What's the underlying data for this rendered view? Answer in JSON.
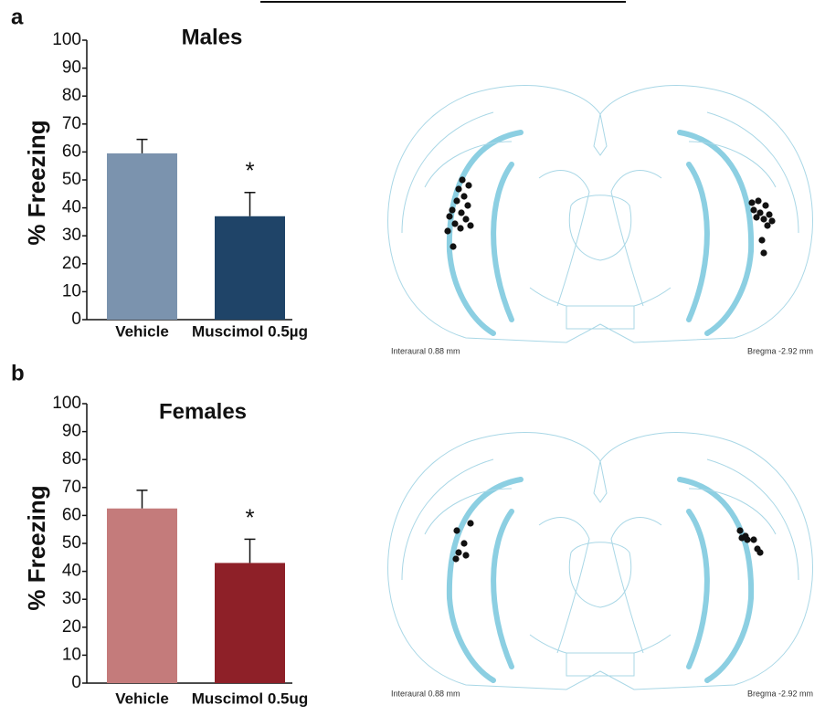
{
  "chart_data": [
    {
      "type": "bar",
      "panel_label": "a",
      "title": "Males",
      "ylabel": "% Freezing",
      "categories": [
        "Vehicle",
        "Muscimol 0.5µg"
      ],
      "values": [
        59.5,
        37
      ],
      "errors": [
        5,
        8.5
      ],
      "colors": [
        "#7b93ae",
        "#1f4468"
      ],
      "annotation": "*",
      "ylim": [
        0,
        100
      ],
      "yticks": [
        0,
        10,
        20,
        30,
        40,
        50,
        60,
        70,
        80,
        90,
        100
      ]
    },
    {
      "type": "bar",
      "panel_label": "b",
      "title": "Females",
      "ylabel": "% Freezing",
      "categories": [
        "Vehicle",
        "Muscimol 0.5ug"
      ],
      "values": [
        62.5,
        43
      ],
      "errors": [
        6.5,
        8.5
      ],
      "colors": [
        "#c47b7b",
        "#8e2028"
      ],
      "annotation": "*",
      "ylim": [
        0,
        100
      ],
      "yticks": [
        0,
        10,
        20,
        30,
        40,
        50,
        60,
        70,
        80,
        90,
        100
      ]
    }
  ],
  "atlas": [
    {
      "left_caption": "Interaural 0.88 mm",
      "right_caption": "Bregma -2.92 mm"
    },
    {
      "left_caption": "Interaural 0.88 mm",
      "right_caption": "Bregma -2.92 mm"
    }
  ]
}
